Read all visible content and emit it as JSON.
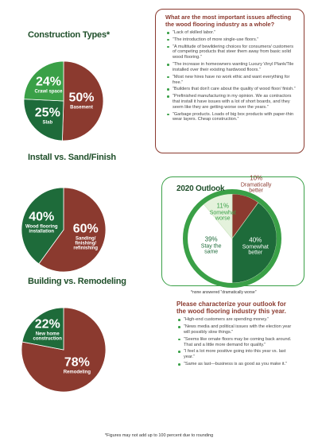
{
  "chart_data": [
    {
      "type": "pie",
      "title": "Construction Types*",
      "categories": [
        "Basement",
        "Slab",
        "Crawl space"
      ],
      "values": [
        50,
        25,
        24
      ],
      "value_labels": [
        "50%",
        "25%",
        "24%"
      ],
      "colors": [
        "#8b3a2f",
        "#1e6b3a",
        "#3aa047"
      ]
    },
    {
      "type": "pie",
      "title": "Install vs. Sand/Finish",
      "categories": [
        "Sanding/ finishing/ refinishing",
        "Wood flooring installation"
      ],
      "values": [
        60,
        40
      ],
      "value_labels": [
        "60%",
        "40%"
      ],
      "colors": [
        "#8b3a2f",
        "#1e6b3a"
      ]
    },
    {
      "type": "pie",
      "title": "Building vs. Remodeling",
      "categories": [
        "Remodeling",
        "New home construction"
      ],
      "values": [
        78,
        22
      ],
      "value_labels": [
        "78%",
        "22%"
      ],
      "colors": [
        "#8b3a2f",
        "#1e6b3a"
      ]
    },
    {
      "type": "pie",
      "title": "2020 Outlook",
      "categories": [
        "Dramatically better",
        "Somewhat better",
        "Stay the same",
        "Somewhat worse"
      ],
      "values": [
        10,
        40,
        39,
        11
      ],
      "value_labels": [
        "10%",
        "40%",
        "39%",
        "11%"
      ],
      "colors": [
        "#8b3a2f",
        "#1e6b3a",
        "#ffffff",
        "#e4f2dc"
      ],
      "note": "*none answered \"dramatically worse\""
    }
  ],
  "issues": {
    "title": "What are the most important issues affecting the wood flooring industry as a whole?",
    "items": [
      "“Lack of skilled labor.”",
      "“The introduction of more single-use floors.”",
      "“A multitude of bewildering choices for consumers/ customers of competing products that steer them away from basic solid wood flooring.”",
      "“The increase in homeowners wanting Luxury Vinyl Plank/Tile installed over their existing hardwood floors.”",
      "“Most new hires have no work ethic and want everything for free.”",
      "“Builders that don't care about the quality of wood floor/ finish.”",
      "“Prefinished manufacturing in my opinion. We as contractors that install it have issues with a lot of short boards, and they seem like they are getting worse over the years.”",
      "“Garbage products. Loads of big box products with paper-thin wear layers. Cheap construction.”"
    ]
  },
  "outlook": {
    "title": "Please characterize your outlook for the wood flooring industry this year.",
    "items": [
      "“High-end customers are spending money.”",
      "“News media and political issues with the election year will possibly slow things.”",
      "“Seems like ornate floors may be coming back around. That and a little more demand for quality.”",
      "“I feel a lot more positive going into this year vs. last year.”",
      "“Same as last—business is as good as you make it.”"
    ]
  },
  "footnote": "*Figures may not add up to 100 percent due to rounding"
}
